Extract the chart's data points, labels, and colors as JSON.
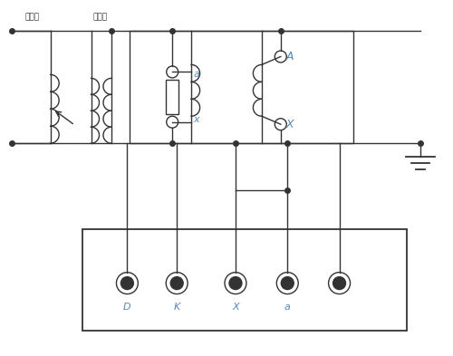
{
  "bg_color": "#ffffff",
  "line_color": "#333333",
  "label_color": "#5588bb",
  "figsize": [
    5.0,
    3.93
  ],
  "dpi": 100,
  "labels": {
    "tiaoya": "调压器",
    "shengya": "升压器",
    "a_label": "a",
    "x_label": "x",
    "A_label": "A",
    "X_label": "X",
    "D_label": "D",
    "K_label": "K",
    "X2_label": "X",
    "a2_label": "a"
  },
  "xlim": [
    0,
    10
  ],
  "ylim": [
    0,
    7.86
  ]
}
